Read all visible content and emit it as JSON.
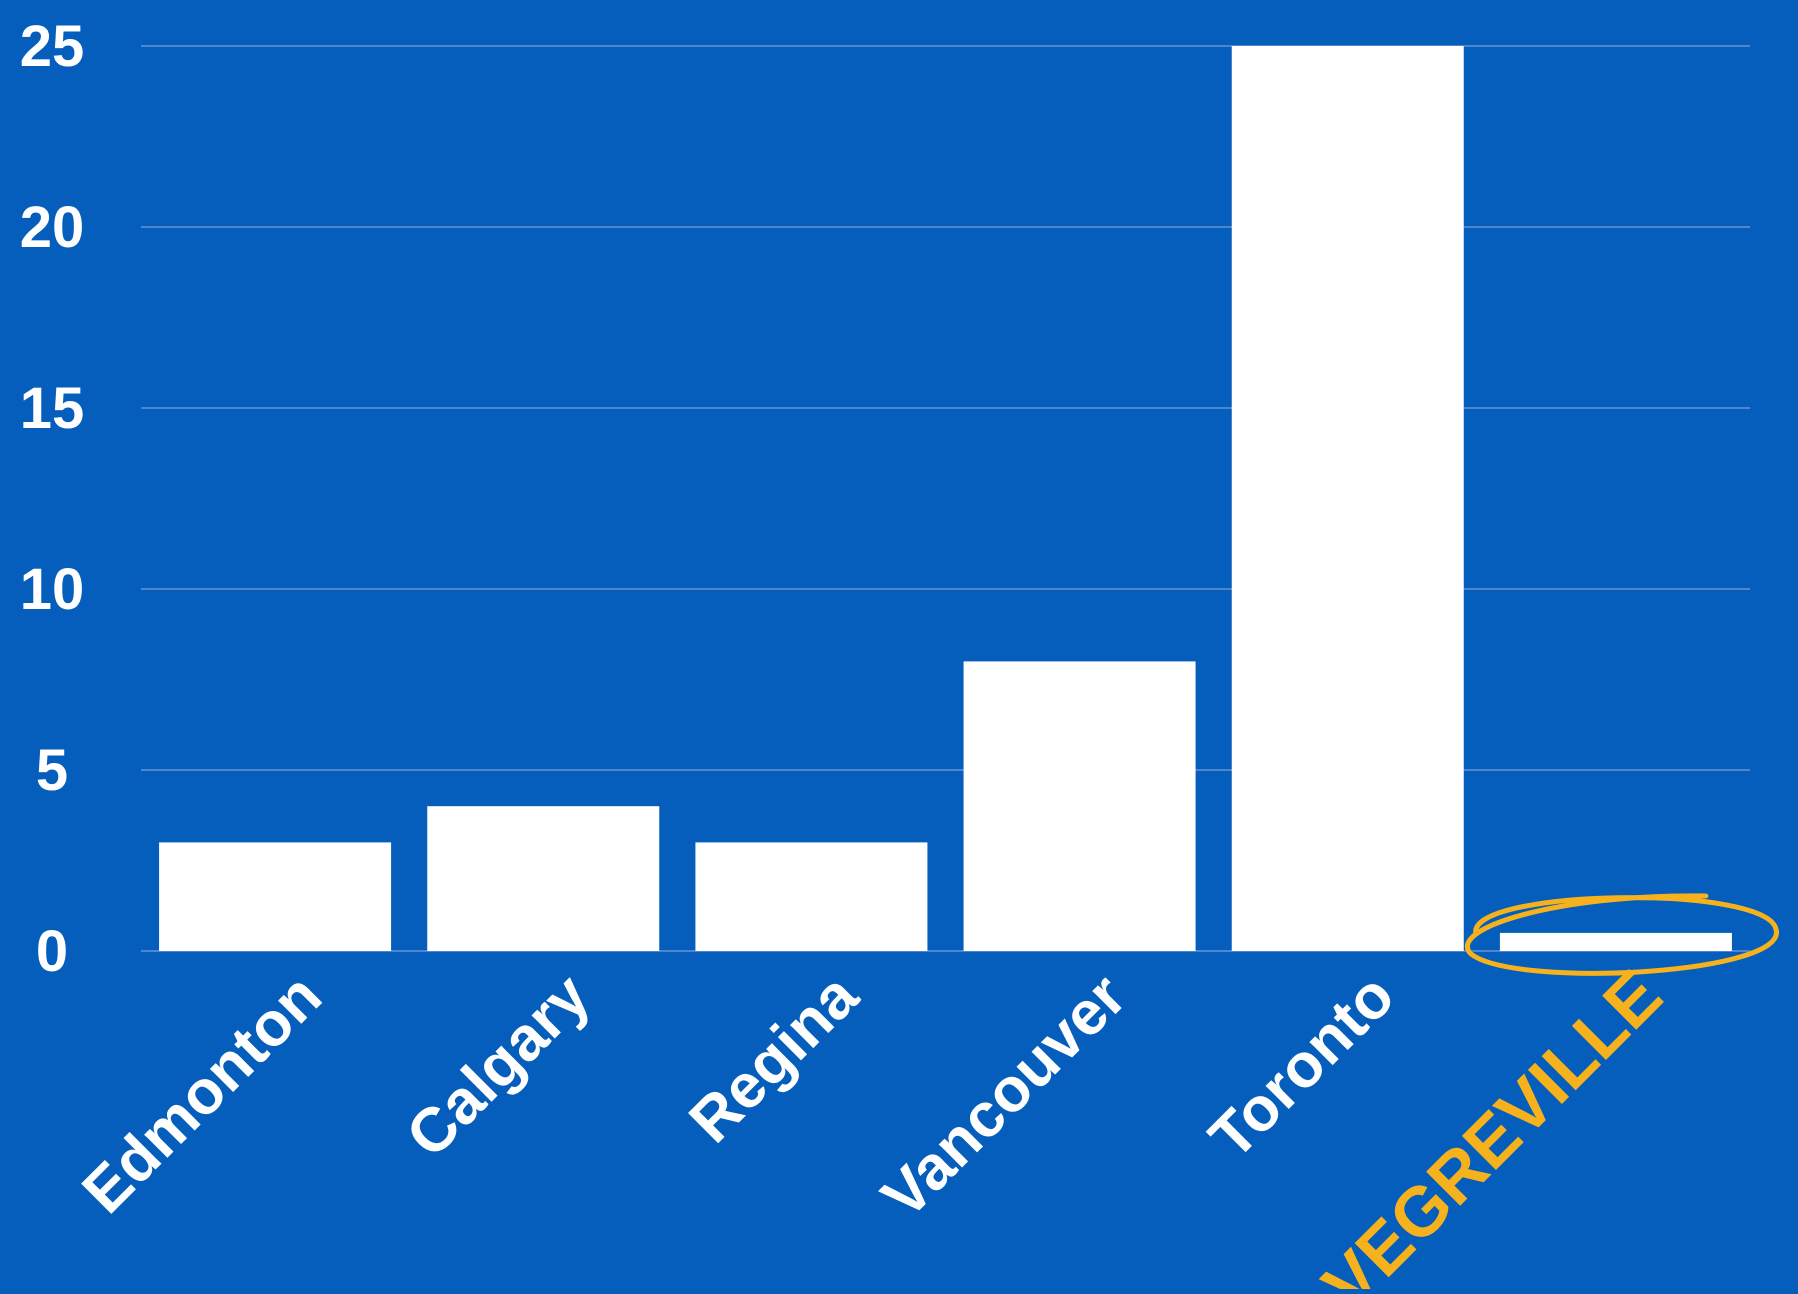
{
  "chart_data": {
    "type": "bar",
    "categories": [
      "Edmonton",
      "Calgary",
      "Regina",
      "Vancouver",
      "Toronto",
      "VEGREVILLE"
    ],
    "values": [
      3,
      4,
      3,
      8,
      25,
      0.5
    ],
    "highlight_category": "VEGREVILLE",
    "title": "",
    "xlabel": "",
    "ylabel": "",
    "ylim": [
      0,
      25
    ],
    "yticks": [
      0,
      5,
      10,
      15,
      20,
      25
    ],
    "grid": true,
    "legend": "none"
  },
  "colors": {
    "background": "#055ebb",
    "bar": "#ffffff",
    "gridline": "#4d86cf",
    "text": "#ffffff",
    "highlight": "#f6b21c"
  }
}
